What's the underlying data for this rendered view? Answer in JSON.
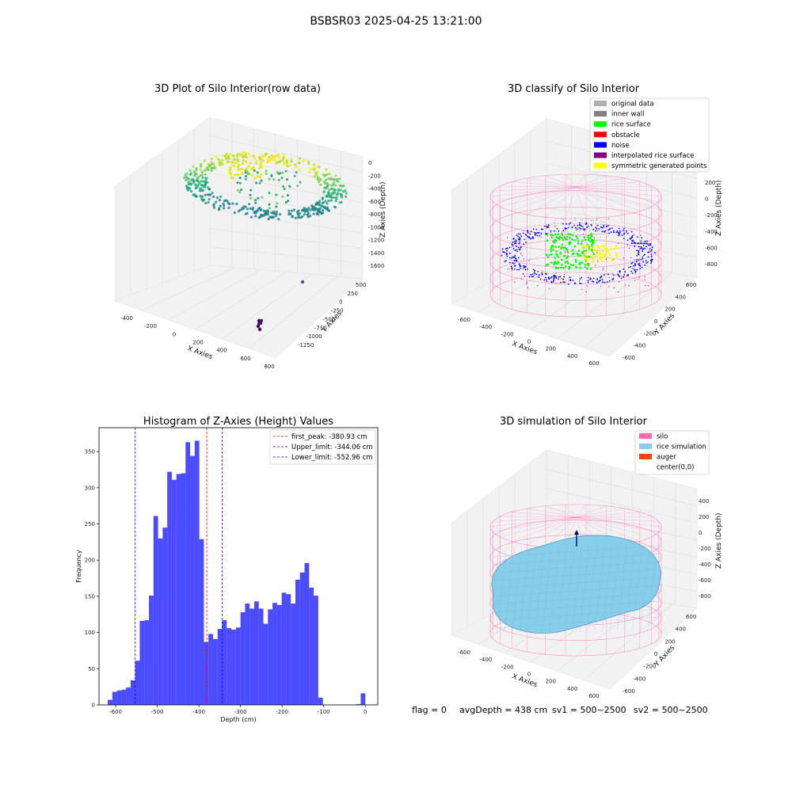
{
  "suptitle": "BSBSR03 2025-04-25 13:21:00",
  "status_line": {
    "flag": "flag = 0",
    "avg_depth": "avgDepth = 438 cm",
    "sv1": "sv1 = 500~2500",
    "sv2": "sv2 = 500~2500"
  },
  "chart_data": [
    {
      "type": "scatter",
      "projection": "3d",
      "title": "3D Plot of Silo Interior(row data)",
      "xlabel": "X Axies",
      "ylabel": "Y Axies",
      "zlabel": "Z Axies (Depth)",
      "x_ticks": [
        "-400",
        "-200",
        "0",
        "200",
        "400",
        "600",
        "800"
      ],
      "y_ticks": [
        "500",
        "250",
        "0",
        "-250",
        "-500",
        "-750",
        "-1000",
        "-1250"
      ],
      "z_ticks": [
        "0",
        "-200",
        "-400",
        "-600",
        "-800",
        "-1000",
        "-1200",
        "-1400",
        "-1600"
      ],
      "xlim": [
        -450,
        800
      ],
      "ylim": [
        -1300,
        600
      ],
      "zlim": [
        -1650,
        50
      ],
      "colormap": "viridis"
    },
    {
      "type": "scatter",
      "projection": "3d",
      "title": "3D classify of Silo Interior",
      "ylabel": "Y Axies",
      "xlabel": "X Axies",
      "zlabel": "Z Axies (Depth)",
      "x_ticks": [
        "-600",
        "-400",
        "-200",
        "0",
        "200",
        "400",
        "600"
      ],
      "y_ticks": [
        "600",
        "400",
        "200",
        "0",
        "-200",
        "-400",
        "-600"
      ],
      "z_ticks": [
        "200",
        "0",
        "-200",
        "-400",
        "-600",
        "-800"
      ],
      "legend_position": "top-right",
      "legend": [
        {
          "label": "original data",
          "color": "#b0b0b0"
        },
        {
          "label": "inner wall",
          "color": "#808080"
        },
        {
          "label": "rice surface",
          "color": "#00ff00"
        },
        {
          "label": "obstacle",
          "color": "#ff0000"
        },
        {
          "label": "noise",
          "color": "#0000ff"
        },
        {
          "label": "interpolated rice surface",
          "color": "#800080"
        },
        {
          "label": "symmetric generated points",
          "color": "#ffff00"
        }
      ]
    },
    {
      "type": "bar",
      "title": "Histogram of Z-Axies (Height) Values",
      "xlabel": "Depth (cm)",
      "ylabel": "Frequency",
      "xlim": [
        -640,
        30
      ],
      "ylim": [
        0,
        383
      ],
      "x_ticks": [
        -600,
        -500,
        -400,
        -300,
        -200,
        -100,
        0
      ],
      "y_ticks": [
        0,
        50,
        100,
        150,
        200,
        250,
        300,
        350
      ],
      "bar_color": "#0000ff",
      "bins": [
        {
          "x0": -619,
          "x1": -608,
          "count": 7
        },
        {
          "x0": -608,
          "x1": -597,
          "count": 18
        },
        {
          "x0": -597,
          "x1": -586,
          "count": 20
        },
        {
          "x0": -586,
          "x1": -575,
          "count": 21
        },
        {
          "x0": -575,
          "x1": -564,
          "count": 24
        },
        {
          "x0": -564,
          "x1": -553,
          "count": 34
        },
        {
          "x0": -553,
          "x1": -542,
          "count": 61
        },
        {
          "x0": -542,
          "x1": -531,
          "count": 116
        },
        {
          "x0": -531,
          "x1": -520,
          "count": 117
        },
        {
          "x0": -520,
          "x1": -509,
          "count": 151
        },
        {
          "x0": -509,
          "x1": -498,
          "count": 261
        },
        {
          "x0": -498,
          "x1": -487,
          "count": 230
        },
        {
          "x0": -487,
          "x1": -476,
          "count": 245
        },
        {
          "x0": -476,
          "x1": -465,
          "count": 322
        },
        {
          "x0": -465,
          "x1": -454,
          "count": 311
        },
        {
          "x0": -454,
          "x1": -443,
          "count": 319
        },
        {
          "x0": -443,
          "x1": -432,
          "count": 320
        },
        {
          "x0": -432,
          "x1": -421,
          "count": 363
        },
        {
          "x0": -421,
          "x1": -410,
          "count": 344
        },
        {
          "x0": -410,
          "x1": -399,
          "count": 365
        },
        {
          "x0": -399,
          "x1": -388,
          "count": 229
        },
        {
          "x0": -388,
          "x1": -377,
          "count": 87
        },
        {
          "x0": -377,
          "x1": -366,
          "count": 98
        },
        {
          "x0": -366,
          "x1": -355,
          "count": 91
        },
        {
          "x0": -355,
          "x1": -344,
          "count": 105
        },
        {
          "x0": -344,
          "x1": -333,
          "count": 117
        },
        {
          "x0": -333,
          "x1": -322,
          "count": 106
        },
        {
          "x0": -322,
          "x1": -311,
          "count": 104
        },
        {
          "x0": -311,
          "x1": -300,
          "count": 107
        },
        {
          "x0": -300,
          "x1": -289,
          "count": 128
        },
        {
          "x0": -289,
          "x1": -278,
          "count": 140
        },
        {
          "x0": -278,
          "x1": -267,
          "count": 133
        },
        {
          "x0": -267,
          "x1": -256,
          "count": 143
        },
        {
          "x0": -256,
          "x1": -245,
          "count": 133
        },
        {
          "x0": -245,
          "x1": -234,
          "count": 112
        },
        {
          "x0": -234,
          "x1": -223,
          "count": 132
        },
        {
          "x0": -223,
          "x1": -212,
          "count": 141
        },
        {
          "x0": -212,
          "x1": -201,
          "count": 138
        },
        {
          "x0": -201,
          "x1": -190,
          "count": 155
        },
        {
          "x0": -190,
          "x1": -179,
          "count": 153
        },
        {
          "x0": -179,
          "x1": -168,
          "count": 140
        },
        {
          "x0": -168,
          "x1": -157,
          "count": 173
        },
        {
          "x0": -157,
          "x1": -146,
          "count": 183
        },
        {
          "x0": -146,
          "x1": -135,
          "count": 196
        },
        {
          "x0": -135,
          "x1": -124,
          "count": 162
        },
        {
          "x0": -124,
          "x1": -113,
          "count": 151
        },
        {
          "x0": -113,
          "x1": -102,
          "count": 10
        },
        {
          "x0": -22,
          "x1": -11,
          "count": 1
        },
        {
          "x0": -11,
          "x1": 0,
          "count": 16
        }
      ],
      "vlines": [
        {
          "label": "first_peak: -380.93 cm",
          "x": -380.93,
          "color": "#ff0000"
        },
        {
          "label": "Upper_limit: -344.06 cm",
          "x": -344.06,
          "color": "#0000ff"
        },
        {
          "label": "Lower_limit: -552.96 cm",
          "x": -552.96,
          "color": "#0000ff"
        }
      ],
      "legend_position": "top-right"
    },
    {
      "type": "scatter",
      "projection": "3d",
      "title": "3D simulation of Silo Interior",
      "xlabel": "X Axies",
      "ylabel": "Y Axies",
      "zlabel": "Z Axies (Depth)",
      "x_ticks": [
        "-600",
        "-400",
        "-200",
        "0",
        "200",
        "400",
        "600"
      ],
      "y_ticks": [
        "600",
        "400",
        "200",
        "0",
        "-200",
        "-400",
        "-600"
      ],
      "z_ticks": [
        "400",
        "200",
        "0",
        "-200",
        "-400",
        "-600",
        "-800"
      ],
      "legend_position": "top-right",
      "legend": [
        {
          "label": "silo",
          "color": "#ff69b4"
        },
        {
          "label": "rice simulation",
          "color": "#87ceeb"
        },
        {
          "label": "auger",
          "color": "#ff4500"
        },
        {
          "label": "center(0,0)",
          "color": ""
        }
      ]
    }
  ]
}
